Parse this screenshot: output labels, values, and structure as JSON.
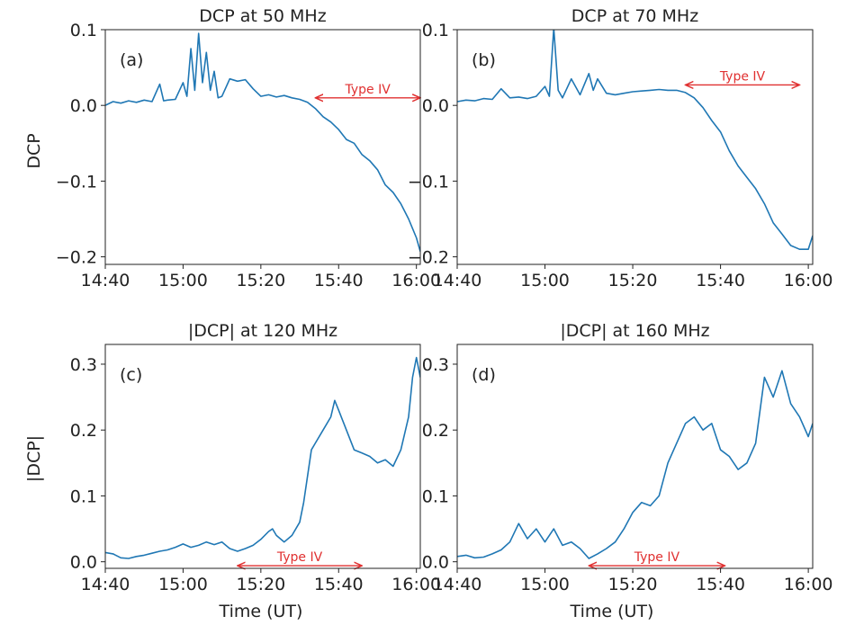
{
  "figure": {
    "ylabel_top": "DCP",
    "ylabel_bottom": "|DCP|",
    "xlabel": "Time (UT)"
  },
  "chart_data": [
    {
      "type": "line",
      "panel": "(a)",
      "title": "DCP at 50 MHz",
      "xlabel": "",
      "ylabel": "DCP",
      "x_ticks": [
        "14:40",
        "15:00",
        "15:20",
        "15:40",
        "16:00"
      ],
      "y_ticks": [
        0.1,
        0.0,
        -0.1,
        -0.2
      ],
      "y_tick_labels": [
        "0.1",
        "0.0",
        "−0.1",
        "−0.2"
      ],
      "xlim": [
        "14:40",
        "16:01"
      ],
      "ylim": [
        -0.21,
        0.1
      ],
      "series_color": "#1f77b4",
      "annotation": {
        "label": "Type IV",
        "start": "15:34",
        "end": "16:01",
        "y": 0.01,
        "color": "#e03030"
      },
      "series": [
        {
          "x": [
            "14:40",
            "14:42",
            "14:44",
            "14:46",
            "14:48",
            "14:50",
            "14:52",
            "14:54",
            "14:55",
            "14:56",
            "14:58",
            "15:00",
            "15:01",
            "15:02",
            "15:03",
            "15:04",
            "15:05",
            "15:06",
            "15:07",
            "15:08",
            "15:09",
            "15:10",
            "15:12",
            "15:14",
            "15:16",
            "15:18",
            "15:20",
            "15:22",
            "15:24",
            "15:26",
            "15:28",
            "15:30",
            "15:32",
            "15:34",
            "15:36",
            "15:38",
            "15:40",
            "15:42",
            "15:44",
            "15:46",
            "15:48",
            "15:50",
            "15:52",
            "15:54",
            "15:56",
            "15:58",
            "16:00",
            "16:01"
          ],
          "values": [
            0.0,
            0.005,
            0.003,
            0.006,
            0.004,
            0.007,
            0.005,
            0.028,
            0.006,
            0.007,
            0.008,
            0.03,
            0.012,
            0.075,
            0.02,
            0.095,
            0.03,
            0.07,
            0.02,
            0.045,
            0.01,
            0.012,
            0.035,
            0.032,
            0.034,
            0.022,
            0.012,
            0.014,
            0.011,
            0.013,
            0.01,
            0.008,
            0.004,
            -0.004,
            -0.015,
            -0.022,
            -0.032,
            -0.045,
            -0.05,
            -0.065,
            -0.073,
            -0.085,
            -0.105,
            -0.115,
            -0.13,
            -0.15,
            -0.175,
            -0.193
          ]
        }
      ]
    },
    {
      "type": "line",
      "panel": "(b)",
      "title": "DCP at 70 MHz",
      "xlabel": "",
      "ylabel": "",
      "x_ticks": [
        "14:40",
        "15:00",
        "15:20",
        "15:40",
        "16:00"
      ],
      "y_ticks": [
        0.1,
        0.0,
        -0.1,
        -0.2
      ],
      "y_tick_labels": [
        "0.1",
        "0.0",
        "−0.1",
        "−0.2"
      ],
      "xlim": [
        "14:40",
        "16:01"
      ],
      "ylim": [
        -0.21,
        0.1
      ],
      "series_color": "#1f77b4",
      "annotation": {
        "label": "Type IV",
        "start": "15:32",
        "end": "15:58",
        "y": 0.027,
        "color": "#e03030"
      },
      "series": [
        {
          "x": [
            "14:40",
            "14:42",
            "14:44",
            "14:46",
            "14:48",
            "14:50",
            "14:52",
            "14:54",
            "14:56",
            "14:58",
            "15:00",
            "15:01",
            "15:02",
            "15:03",
            "15:04",
            "15:06",
            "15:08",
            "15:10",
            "15:11",
            "15:12",
            "15:14",
            "15:16",
            "15:18",
            "15:20",
            "15:22",
            "15:24",
            "15:26",
            "15:28",
            "15:30",
            "15:32",
            "15:34",
            "15:36",
            "15:38",
            "15:40",
            "15:42",
            "15:44",
            "15:46",
            "15:48",
            "15:50",
            "15:52",
            "15:54",
            "15:56",
            "15:58",
            "16:00",
            "16:01"
          ],
          "values": [
            0.005,
            0.007,
            0.006,
            0.009,
            0.008,
            0.022,
            0.01,
            0.011,
            0.009,
            0.012,
            0.025,
            0.012,
            0.102,
            0.02,
            0.01,
            0.035,
            0.014,
            0.042,
            0.02,
            0.035,
            0.016,
            0.014,
            0.016,
            0.018,
            0.019,
            0.02,
            0.021,
            0.02,
            0.02,
            0.017,
            0.01,
            -0.003,
            -0.02,
            -0.035,
            -0.06,
            -0.08,
            -0.095,
            -0.11,
            -0.13,
            -0.155,
            -0.17,
            -0.185,
            -0.19,
            -0.19,
            -0.172
          ]
        }
      ]
    },
    {
      "type": "line",
      "panel": "(c)",
      "title": "|DCP| at 120 MHz",
      "xlabel": "Time (UT)",
      "ylabel": "|DCP|",
      "x_ticks": [
        "14:40",
        "15:00",
        "15:20",
        "15:40",
        "16:00"
      ],
      "y_ticks": [
        0.0,
        0.1,
        0.2,
        0.3
      ],
      "y_tick_labels": [
        "0.0",
        "0.1",
        "0.2",
        "0.3"
      ],
      "xlim": [
        "14:40",
        "16:01"
      ],
      "ylim": [
        -0.01,
        0.33
      ],
      "series_color": "#1f77b4",
      "annotation": {
        "label": "Type IV",
        "start": "15:14",
        "end": "15:46",
        "y": -0.006,
        "color": "#e03030"
      },
      "series": [
        {
          "x": [
            "14:40",
            "14:42",
            "14:44",
            "14:46",
            "14:48",
            "14:50",
            "14:52",
            "14:54",
            "14:56",
            "14:58",
            "15:00",
            "15:02",
            "15:04",
            "15:06",
            "15:08",
            "15:10",
            "15:12",
            "15:14",
            "15:16",
            "15:18",
            "15:20",
            "15:22",
            "15:23",
            "15:24",
            "15:26",
            "15:28",
            "15:30",
            "15:31",
            "15:32",
            "15:33",
            "15:34",
            "15:36",
            "15:38",
            "15:39",
            "15:40",
            "15:42",
            "15:44",
            "15:46",
            "15:48",
            "15:50",
            "15:52",
            "15:54",
            "15:56",
            "15:58",
            "15:59",
            "16:00",
            "16:01"
          ],
          "values": [
            0.014,
            0.012,
            0.006,
            0.005,
            0.008,
            0.01,
            0.013,
            0.016,
            0.018,
            0.022,
            0.027,
            0.022,
            0.025,
            0.03,
            0.026,
            0.03,
            0.02,
            0.016,
            0.02,
            0.025,
            0.034,
            0.046,
            0.05,
            0.04,
            0.03,
            0.04,
            0.06,
            0.09,
            0.13,
            0.17,
            0.18,
            0.2,
            0.22,
            0.245,
            0.23,
            0.2,
            0.17,
            0.165,
            0.16,
            0.15,
            0.155,
            0.145,
            0.17,
            0.22,
            0.28,
            0.31,
            0.28
          ]
        }
      ]
    },
    {
      "type": "line",
      "panel": "(d)",
      "title": "|DCP| at 160 MHz",
      "xlabel": "Time (UT)",
      "ylabel": "",
      "x_ticks": [
        "14:40",
        "15:00",
        "15:20",
        "15:40",
        "16:00"
      ],
      "y_ticks": [
        0.0,
        0.1,
        0.2,
        0.3
      ],
      "y_tick_labels": [
        "0.0",
        "0.1",
        "0.2",
        "0.3"
      ],
      "xlim": [
        "14:40",
        "16:01"
      ],
      "ylim": [
        -0.01,
        0.33
      ],
      "series_color": "#1f77b4",
      "annotation": {
        "label": "Type IV",
        "start": "15:10",
        "end": "15:41",
        "y": -0.006,
        "color": "#e03030"
      },
      "series": [
        {
          "x": [
            "14:40",
            "14:42",
            "14:44",
            "14:46",
            "14:48",
            "14:50",
            "14:52",
            "14:54",
            "14:56",
            "14:58",
            "15:00",
            "15:02",
            "15:04",
            "15:06",
            "15:08",
            "15:10",
            "15:12",
            "15:14",
            "15:16",
            "15:18",
            "15:20",
            "15:22",
            "15:24",
            "15:26",
            "15:28",
            "15:30",
            "15:32",
            "15:34",
            "15:36",
            "15:38",
            "15:40",
            "15:42",
            "15:44",
            "15:46",
            "15:48",
            "15:50",
            "15:52",
            "15:54",
            "15:56",
            "15:58",
            "16:00",
            "16:01"
          ],
          "values": [
            0.008,
            0.01,
            0.006,
            0.007,
            0.012,
            0.018,
            0.03,
            0.058,
            0.035,
            0.05,
            0.03,
            0.05,
            0.025,
            0.03,
            0.02,
            0.005,
            0.012,
            0.02,
            0.03,
            0.05,
            0.075,
            0.09,
            0.085,
            0.1,
            0.15,
            0.18,
            0.21,
            0.22,
            0.2,
            0.21,
            0.17,
            0.16,
            0.14,
            0.15,
            0.18,
            0.28,
            0.25,
            0.29,
            0.24,
            0.22,
            0.19,
            0.21
          ]
        }
      ]
    }
  ]
}
